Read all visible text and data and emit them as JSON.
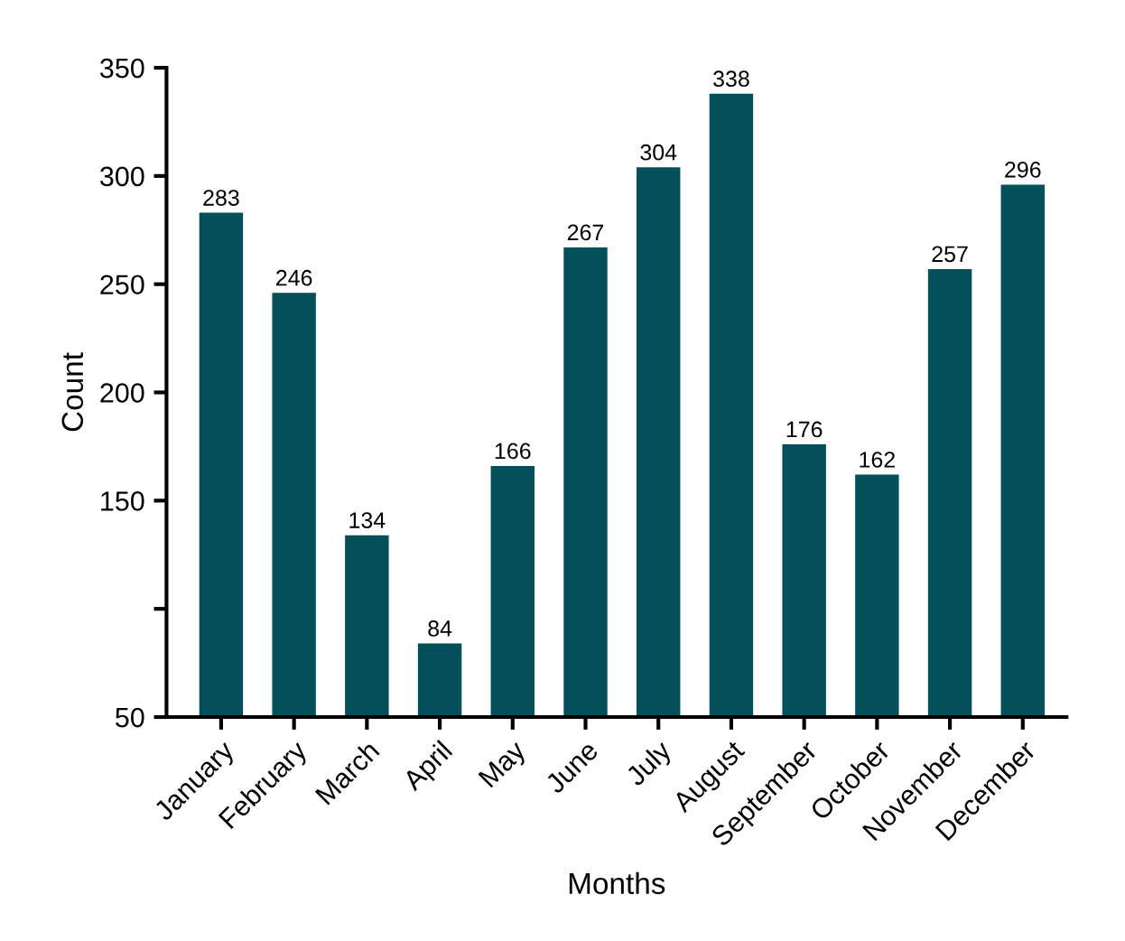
{
  "chart_data": {
    "type": "bar",
    "xlabel": "Months",
    "ylabel": "Count",
    "categories": [
      "January",
      "February",
      "March",
      "April",
      "May",
      "June",
      "July",
      "August",
      "September",
      "October",
      "November",
      "December"
    ],
    "values": [
      283,
      246,
      134,
      84,
      166,
      267,
      304,
      338,
      176,
      162,
      257,
      296
    ],
    "color": "#034f5a",
    "data_labels": true,
    "grid": false,
    "legend": false,
    "ylim": [
      50,
      350
    ],
    "yticks": [
      50,
      {
        "value": 100,
        "label": null
      },
      150,
      200,
      250,
      300,
      350
    ]
  }
}
